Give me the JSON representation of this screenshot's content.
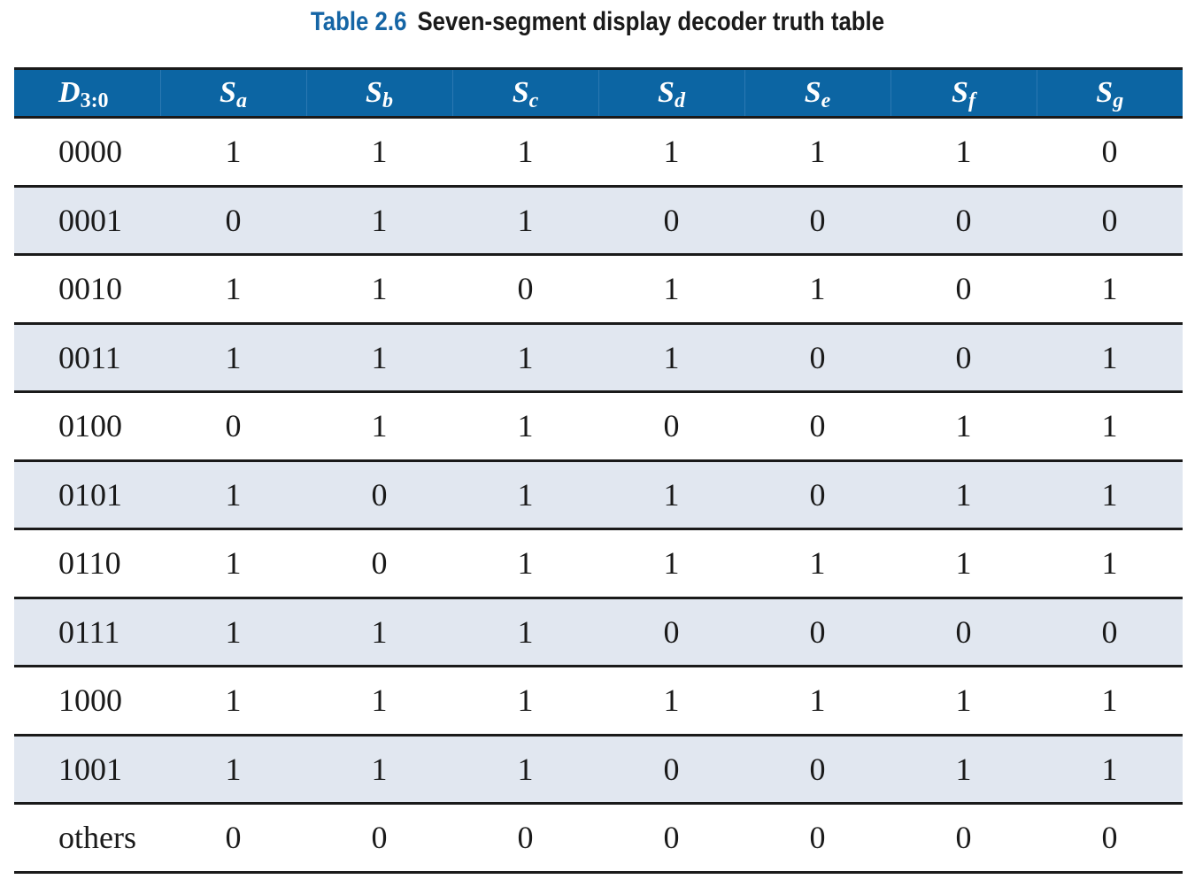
{
  "caption": {
    "number": "Table 2.6",
    "title": "Seven-segment display decoder truth table"
  },
  "headers": [
    {
      "base": "D",
      "sub": "3:0"
    },
    {
      "base": "S",
      "sub": "a"
    },
    {
      "base": "S",
      "sub": "b"
    },
    {
      "base": "S",
      "sub": "c"
    },
    {
      "base": "S",
      "sub": "d"
    },
    {
      "base": "S",
      "sub": "e"
    },
    {
      "base": "S",
      "sub": "f"
    },
    {
      "base": "S",
      "sub": "g"
    }
  ],
  "rows": [
    [
      "0000",
      "1",
      "1",
      "1",
      "1",
      "1",
      "1",
      "0"
    ],
    [
      "0001",
      "0",
      "1",
      "1",
      "0",
      "0",
      "0",
      "0"
    ],
    [
      "0010",
      "1",
      "1",
      "0",
      "1",
      "1",
      "0",
      "1"
    ],
    [
      "0011",
      "1",
      "1",
      "1",
      "1",
      "0",
      "0",
      "1"
    ],
    [
      "0100",
      "0",
      "1",
      "1",
      "0",
      "0",
      "1",
      "1"
    ],
    [
      "0101",
      "1",
      "0",
      "1",
      "1",
      "0",
      "1",
      "1"
    ],
    [
      "0110",
      "1",
      "0",
      "1",
      "1",
      "1",
      "1",
      "1"
    ],
    [
      "0111",
      "1",
      "1",
      "1",
      "0",
      "0",
      "0",
      "0"
    ],
    [
      "1000",
      "1",
      "1",
      "1",
      "1",
      "1",
      "1",
      "1"
    ],
    [
      "1001",
      "1",
      "1",
      "1",
      "0",
      "0",
      "1",
      "1"
    ],
    [
      "others",
      "0",
      "0",
      "0",
      "0",
      "0",
      "0",
      "0"
    ]
  ],
  "colors": {
    "header_bg": "#0c65a3",
    "caption_number": "#1565a5",
    "row_shade": "#e1e7f0",
    "rule": "#1a1a1a"
  }
}
